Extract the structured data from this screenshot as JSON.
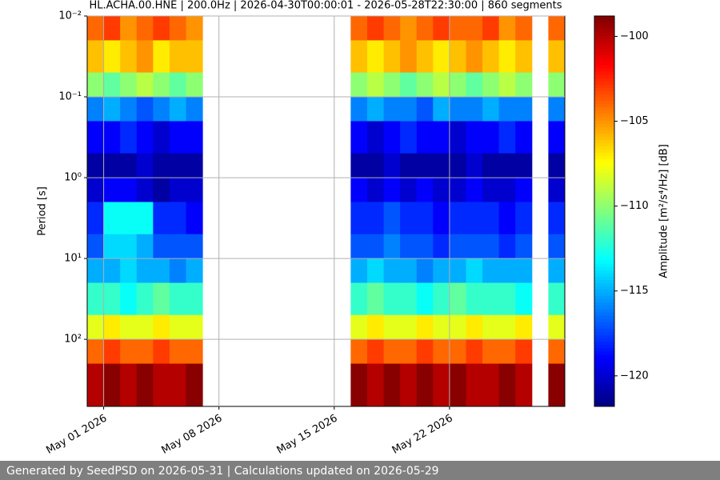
{
  "chart_data": {
    "type": "heatmap",
    "title": "HL.ACHA.00.HNE | 200.0Hz | 2026-04-30T00:00:01 - 2026-05-28T22:30:00 | 860 segments",
    "ylabel": "Period [s]",
    "colorbar_label": "Amplitude [m²/s⁴/Hz] [dB]",
    "footer": "Generated by SeedPSD on 2026-05-31 | Calculations updated on 2026-05-29",
    "colormap": "jet",
    "clim": [
      -121.8,
      -98.8
    ],
    "cticks": [
      {
        "value": -100,
        "label": "−100"
      },
      {
        "value": -105,
        "label": "−105"
      },
      {
        "value": -110,
        "label": "−110"
      },
      {
        "value": -115,
        "label": "−115"
      },
      {
        "value": -120,
        "label": "−120"
      }
    ],
    "yscale": "log",
    "yinverted": true,
    "grid": true,
    "xlim": [
      "2026-04-30",
      "2026-05-29"
    ],
    "ylim": [
      0.01,
      676
    ],
    "xticks": [
      {
        "value": "2026-05-01",
        "label": "May 01 2026"
      },
      {
        "value": "2026-05-08",
        "label": "May 08 2026"
      },
      {
        "value": "2026-05-15",
        "label": "May 15 2026"
      },
      {
        "value": "2026-05-22",
        "label": "May 22 2026"
      }
    ],
    "yticks": [
      {
        "value": 0.01,
        "label": "10⁻²"
      },
      {
        "value": 0.1,
        "label": "10⁻¹"
      },
      {
        "value": 1,
        "label": "10⁰"
      },
      {
        "value": 10,
        "label": "10¹"
      },
      {
        "value": 100,
        "label": "10²"
      }
    ],
    "x_bins": [
      "2026-04-30",
      "2026-05-01",
      "2026-05-02",
      "2026-05-03",
      "2026-05-04",
      "2026-05-05",
      "2026-05-06",
      "2026-05-07",
      "2026-05-08",
      "2026-05-09",
      "2026-05-10",
      "2026-05-11",
      "2026-05-12",
      "2026-05-13",
      "2026-05-14",
      "2026-05-15",
      "2026-05-16",
      "2026-05-17",
      "2026-05-18",
      "2026-05-19",
      "2026-05-20",
      "2026-05-21",
      "2026-05-22",
      "2026-05-23",
      "2026-05-24",
      "2026-05-25",
      "2026-05-26",
      "2026-05-27",
      "2026-05-28",
      "2026-05-29"
    ],
    "y_bins": [
      0.01,
      0.02,
      0.05,
      0.1,
      0.2,
      0.5,
      1,
      2,
      5,
      10,
      20,
      50,
      100,
      200,
      676
    ],
    "z": [
      [
        -104,
        -103,
        -105,
        -104,
        -103,
        -104,
        -105,
        null,
        null,
        null,
        null,
        null,
        null,
        null,
        null,
        null,
        -104,
        -103,
        -104,
        -105,
        -104,
        -103,
        -104,
        -104,
        -103,
        -105,
        -104,
        null,
        -104
      ],
      [
        -106,
        -107,
        -106,
        -105,
        -107,
        -106,
        -106,
        null,
        null,
        null,
        null,
        null,
        null,
        null,
        null,
        null,
        -106,
        -107,
        -106,
        -105,
        -106,
        -107,
        -106,
        -105,
        -106,
        -107,
        -106,
        null,
        -106
      ],
      [
        -110,
        -111,
        -110,
        -109,
        -110,
        -111,
        -110,
        null,
        null,
        null,
        null,
        null,
        null,
        null,
        null,
        null,
        -110,
        -109,
        -110,
        -111,
        -110,
        -109,
        -110,
        -111,
        -110,
        -109,
        -110,
        null,
        -110
      ],
      [
        -116,
        -115,
        -116,
        -117,
        -116,
        -115,
        -116,
        null,
        null,
        null,
        null,
        null,
        null,
        null,
        null,
        null,
        -116,
        -115,
        -116,
        -116,
        -117,
        -115,
        -116,
        -116,
        -115,
        -116,
        -116,
        null,
        -116
      ],
      [
        -119,
        -119,
        -118,
        -119,
        -120,
        -119,
        -119,
        null,
        null,
        null,
        null,
        null,
        null,
        null,
        null,
        null,
        -119,
        -120,
        -119,
        -118,
        -119,
        -119,
        -120,
        -119,
        -119,
        -118,
        -119,
        null,
        -119
      ],
      [
        -121,
        -121,
        -121,
        -120,
        -121,
        -121,
        -121,
        null,
        null,
        null,
        null,
        null,
        null,
        null,
        null,
        null,
        -121,
        -121,
        -120,
        -121,
        -121,
        -121,
        -121,
        -120,
        -121,
        -121,
        -121,
        null,
        -121
      ],
      [
        -120,
        -119,
        -119,
        -120,
        -121,
        -120,
        -120,
        null,
        null,
        null,
        null,
        null,
        null,
        null,
        null,
        null,
        -119,
        -120,
        -119,
        -120,
        -119,
        -120,
        -120,
        -119,
        -120,
        -120,
        -119,
        null,
        -120
      ],
      [
        -118,
        -113,
        -113,
        -113,
        -118,
        -118,
        -119,
        null,
        null,
        null,
        null,
        null,
        null,
        null,
        null,
        null,
        -118,
        -118,
        -117,
        -118,
        -118,
        -119,
        -118,
        -118,
        -118,
        -119,
        -118,
        null,
        -118
      ],
      [
        -117,
        -114,
        -114,
        -115,
        -117,
        -117,
        -117,
        null,
        null,
        null,
        null,
        null,
        null,
        null,
        null,
        null,
        -117,
        -117,
        -116,
        -117,
        -117,
        -118,
        -117,
        -117,
        -117,
        -118,
        -117,
        null,
        -117
      ],
      [
        -115,
        -115,
        -114,
        -115,
        -115,
        -116,
        -115,
        null,
        null,
        null,
        null,
        null,
        null,
        null,
        null,
        null,
        -115,
        -114,
        -115,
        -115,
        -116,
        -115,
        -115,
        -114,
        -115,
        -115,
        -115,
        null,
        -115
      ],
      [
        -112,
        -112,
        -113,
        -112,
        -111,
        -112,
        -112,
        null,
        null,
        null,
        null,
        null,
        null,
        null,
        null,
        null,
        -112,
        -111,
        -112,
        -112,
        -113,
        -112,
        -111,
        -112,
        -112,
        -112,
        -113,
        null,
        -112
      ],
      [
        -108,
        -107,
        -108,
        -108,
        -107,
        -108,
        -108,
        null,
        null,
        null,
        null,
        null,
        null,
        null,
        null,
        null,
        -108,
        -107,
        -108,
        -108,
        -107,
        -108,
        -108,
        -107,
        -108,
        -108,
        -107,
        null,
        -108
      ],
      [
        -104,
        -103,
        -104,
        -104,
        -103,
        -104,
        -104,
        null,
        null,
        null,
        null,
        null,
        null,
        null,
        null,
        null,
        -104,
        -103,
        -104,
        -104,
        -103,
        -104,
        -104,
        -103,
        -104,
        -104,
        -103,
        null,
        -104
      ],
      [
        -100,
        -99,
        -100,
        -99,
        -100,
        -100,
        -99,
        null,
        null,
        null,
        null,
        null,
        null,
        null,
        null,
        null,
        -99,
        -100,
        -99,
        -100,
        -99,
        -100,
        -99,
        -100,
        -100,
        -99,
        -100,
        null,
        -99
      ]
    ]
  }
}
